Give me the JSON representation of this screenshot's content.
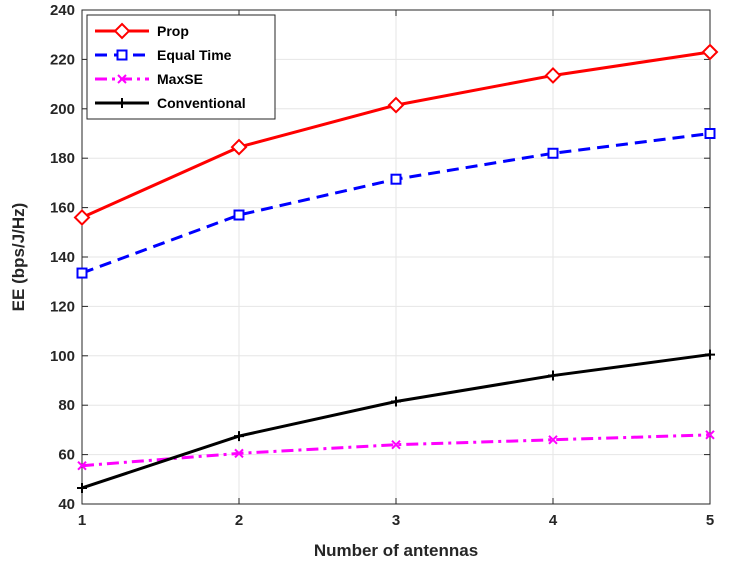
{
  "chart_data": {
    "type": "line",
    "title": "",
    "xlabel": "Number of antennas",
    "ylabel": "EE (bps/J/Hz)",
    "x": [
      1,
      2,
      3,
      4,
      5
    ],
    "xlim": [
      1,
      5
    ],
    "ylim": [
      40,
      240
    ],
    "xticks": [
      "1",
      "2",
      "3",
      "4",
      "5"
    ],
    "yticks": [
      "40",
      "60",
      "80",
      "100",
      "120",
      "140",
      "160",
      "180",
      "200",
      "220",
      "240"
    ],
    "grid": true,
    "legend_position": "top-left",
    "series": [
      {
        "name": "Prop",
        "values": [
          156,
          184.5,
          201.5,
          213.5,
          223
        ],
        "color": "#ff0000",
        "line_style": "solid",
        "marker": "diamond"
      },
      {
        "name": "Equal Time",
        "values": [
          133.5,
          157,
          171.5,
          182,
          190
        ],
        "color": "#0000ff",
        "line_style": "dashed",
        "marker": "square"
      },
      {
        "name": "MaxSE",
        "values": [
          55.5,
          60.5,
          64,
          66,
          68
        ],
        "color": "#ff00ff",
        "line_style": "dash-dot",
        "marker": "x"
      },
      {
        "name": "Conventional",
        "values": [
          46.5,
          67.5,
          81.5,
          92,
          100.5
        ],
        "color": "#000000",
        "line_style": "solid",
        "marker": "plus"
      }
    ]
  }
}
